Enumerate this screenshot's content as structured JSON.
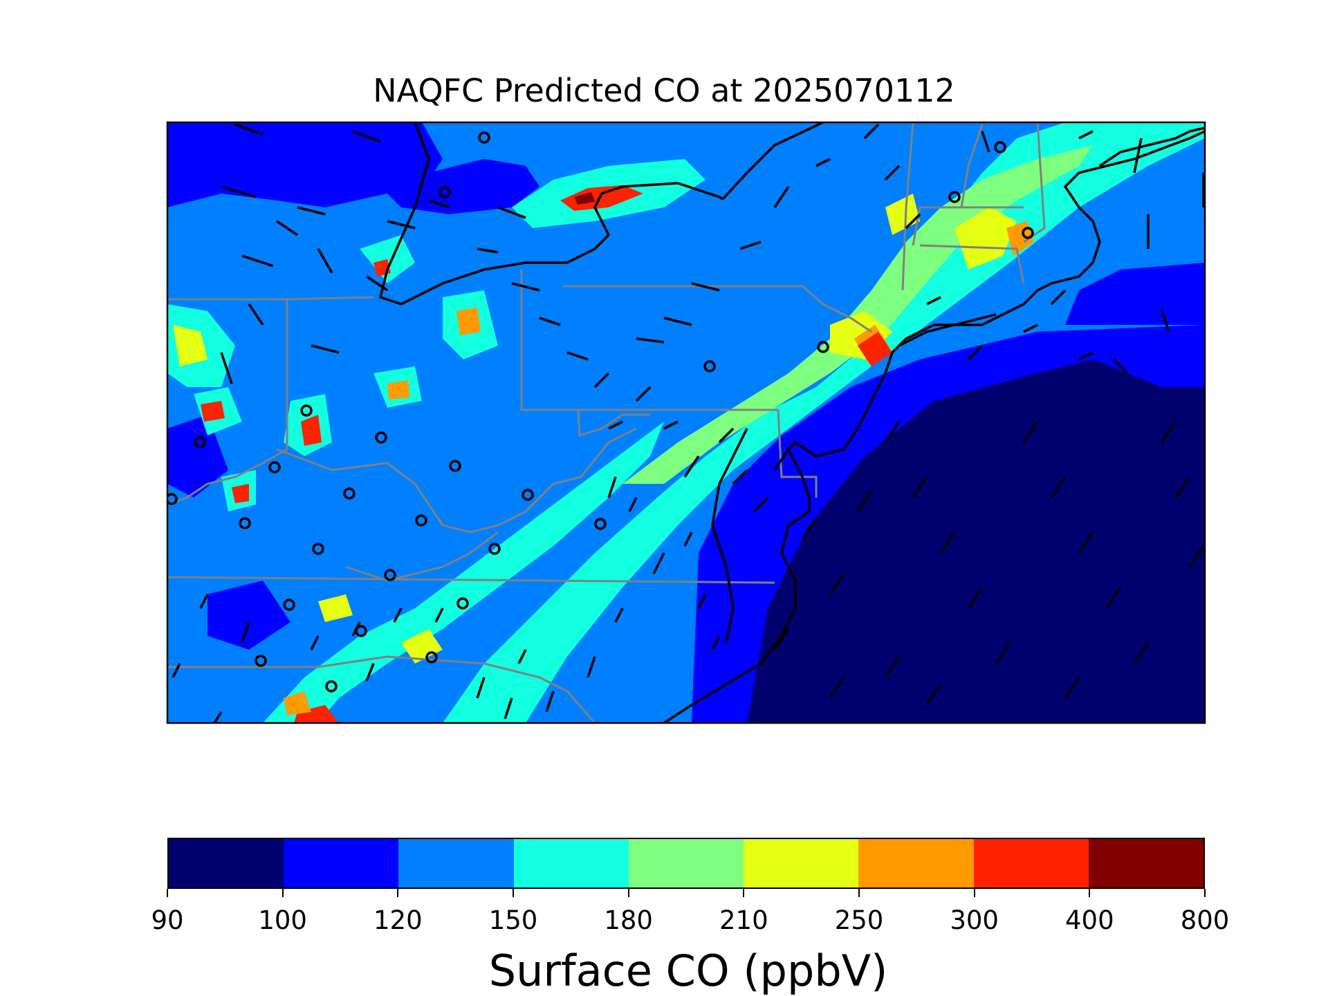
{
  "title": "NAQFC Predicted CO at 2025070112",
  "colorbar": {
    "label": "Surface CO (ppbV)",
    "ticks": [
      "90",
      "100",
      "120",
      "150",
      "180",
      "210",
      "250",
      "300",
      "400",
      "800"
    ],
    "colors": [
      "#00006e",
      "#0000ff",
      "#007fff",
      "#12ffe0",
      "#7fff7f",
      "#e5ff12",
      "#ff9a00",
      "#ff2200",
      "#800000"
    ]
  },
  "map": {
    "background": "#007fff",
    "state_line_color": "#808080",
    "coast_color": "#000000",
    "overlays": [
      "wind-barbs",
      "monitoring-sites"
    ]
  }
}
